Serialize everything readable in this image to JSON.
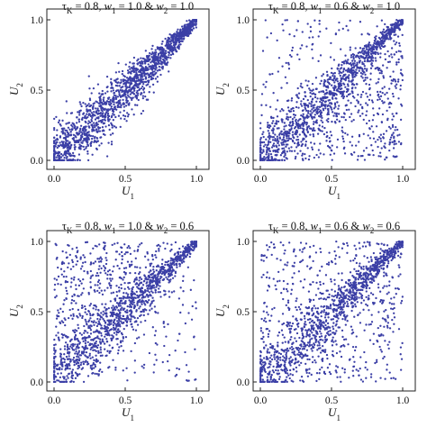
{
  "figure": {
    "point_color": "#3b3fa6"
  },
  "chart_data": [
    {
      "type": "scatter",
      "title": "τK = 0.8, w1 = 1.0 & w2 = 1.0",
      "xlabel": "U1",
      "ylabel": "U2",
      "xlim": [
        0,
        1
      ],
      "ylim": [
        0,
        1
      ],
      "xticks": [
        "0.0",
        "0.5",
        "1.0"
      ],
      "yticks": [
        "0.0",
        "0.5",
        "1.0"
      ],
      "n_points": 1600,
      "w1": 1.0,
      "w2": 1.0,
      "seed": 11
    },
    {
      "type": "scatter",
      "title": "τK = 0.8, w1 = 0.6 & w2 = 1.0",
      "xlabel": "U1",
      "ylabel": "U2",
      "xlim": [
        0,
        1
      ],
      "ylim": [
        0,
        1
      ],
      "xticks": [
        "0.0",
        "0.5",
        "1.0"
      ],
      "yticks": [
        "0.0",
        "0.5",
        "1.0"
      ],
      "n_points": 1600,
      "w1": 0.6,
      "w2": 1.0,
      "seed": 23
    },
    {
      "type": "scatter",
      "title": "τK = 0.8, w1 = 1.0 & w2 = 0.6",
      "xlabel": "U1",
      "ylabel": "U2",
      "xlim": [
        0,
        1
      ],
      "ylim": [
        0,
        1
      ],
      "xticks": [
        "0.0",
        "0.5",
        "1.0"
      ],
      "yticks": [
        "0.0",
        "0.5",
        "1.0"
      ],
      "n_points": 1600,
      "w1": 1.0,
      "w2": 0.6,
      "seed": 37
    },
    {
      "type": "scatter",
      "title": "τK = 0.8, w1 = 0.6 & w2 = 0.6",
      "xlabel": "U1",
      "ylabel": "U2",
      "xlim": [
        0,
        1
      ],
      "ylim": [
        0,
        1
      ],
      "xticks": [
        "0.0",
        "0.5",
        "1.0"
      ],
      "yticks": [
        "0.0",
        "0.5",
        "1.0"
      ],
      "n_points": 1600,
      "w1": 0.6,
      "w2": 0.6,
      "seed": 53
    }
  ]
}
